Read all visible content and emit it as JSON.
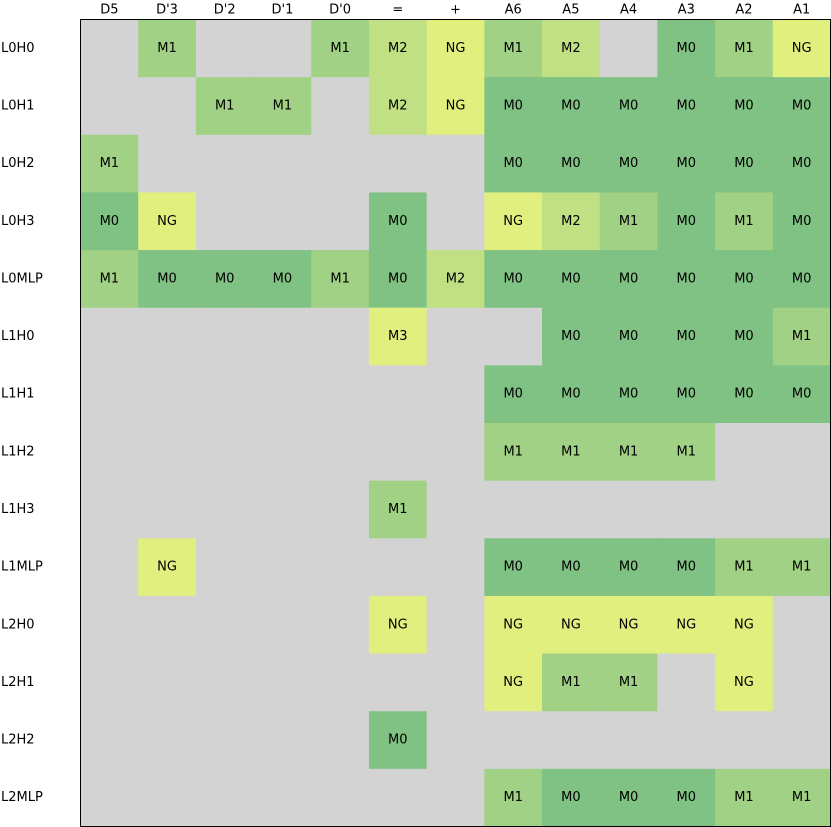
{
  "chart_data": {
    "type": "heatmap",
    "title": "",
    "xlabel": "",
    "ylabel": "",
    "columns": [
      "D5",
      "D'3",
      "D'2",
      "D'1",
      "D'0",
      "=",
      "+",
      "A6",
      "A5",
      "A4",
      "A3",
      "A2",
      "A1"
    ],
    "rows": [
      "L0H0",
      "L0H1",
      "L0H2",
      "L0H3",
      "L0MLP",
      "L1H0",
      "L1H1",
      "L1H2",
      "L1H3",
      "L1MLP",
      "L2H0",
      "L2H1",
      "L2H2",
      "L2MLP"
    ],
    "values": [
      [
        "",
        "M1",
        "",
        "",
        "M1",
        "M2",
        "NG",
        "M1",
        "M2",
        "",
        "M0",
        "M1",
        "NG"
      ],
      [
        "",
        "",
        "M1",
        "M1",
        "",
        "M2",
        "NG",
        "M0",
        "M0",
        "M0",
        "M0",
        "M0",
        "M0"
      ],
      [
        "M1",
        "",
        "",
        "",
        "",
        "",
        "",
        "M0",
        "M0",
        "M0",
        "M0",
        "M0",
        "M0"
      ],
      [
        "M0",
        "NG",
        "",
        "",
        "",
        "M0",
        "",
        "NG",
        "M2",
        "M1",
        "M0",
        "M1",
        "M0"
      ],
      [
        "M1",
        "M0",
        "M0",
        "M0",
        "M1",
        "M0",
        "M2",
        "M0",
        "M0",
        "M0",
        "M0",
        "M0",
        "M0"
      ],
      [
        "",
        "",
        "",
        "",
        "",
        "M3",
        "",
        "",
        "M0",
        "M0",
        "M0",
        "M0",
        "M1"
      ],
      [
        "",
        "",
        "",
        "",
        "",
        "",
        "",
        "M0",
        "M0",
        "M0",
        "M0",
        "M0",
        "M0"
      ],
      [
        "",
        "",
        "",
        "",
        "",
        "",
        "",
        "M1",
        "M1",
        "M1",
        "M1",
        "",
        ""
      ],
      [
        "",
        "",
        "",
        "",
        "",
        "M1",
        "",
        "",
        "",
        "",
        "",
        "",
        ""
      ],
      [
        "",
        "NG",
        "",
        "",
        "",
        "",
        "",
        "M0",
        "M0",
        "M0",
        "M0",
        "M1",
        "M1"
      ],
      [
        "",
        "",
        "",
        "",
        "",
        "NG",
        "",
        "NG",
        "NG",
        "NG",
        "NG",
        "NG",
        ""
      ],
      [
        "",
        "",
        "",
        "",
        "",
        "",
        "",
        "NG",
        "M1",
        "M1",
        "",
        "NG",
        ""
      ],
      [
        "",
        "",
        "",
        "",
        "",
        "M0",
        "",
        "",
        "",
        "",
        "",
        "",
        ""
      ],
      [
        "",
        "",
        "",
        "",
        "",
        "",
        "",
        "M1",
        "M0",
        "M0",
        "M0",
        "M1",
        "M1"
      ]
    ],
    "colors": {
      "M0": "#80c283",
      "M1": "#a0d184",
      "M2": "#c0e083",
      "M3": "#e0ef7e",
      "NG": "#e0ef7e",
      "empty": "#d3d3d3",
      "frame": "#000000"
    },
    "grid": false,
    "legend": "none"
  }
}
